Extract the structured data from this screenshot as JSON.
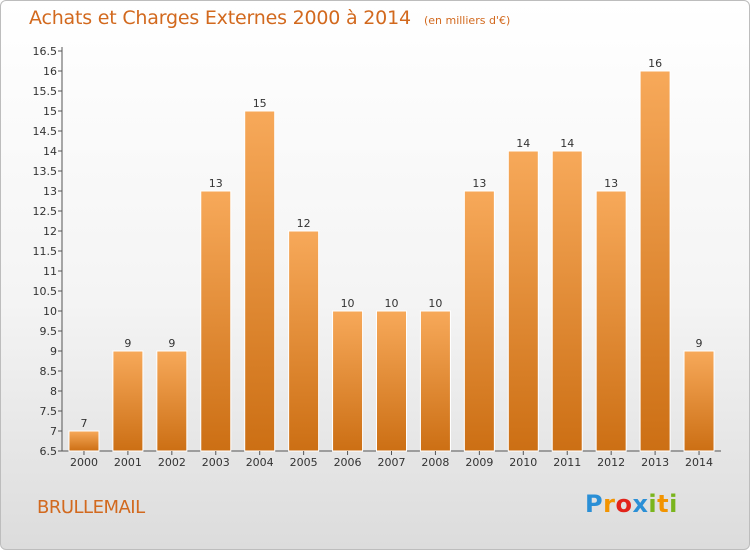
{
  "header": {
    "title": "Achats et Charges Externes 2000 à 2014",
    "unit": "(en milliers d'€)"
  },
  "commune": "BRULLEMAIL",
  "brand": {
    "letters": [
      "P",
      "r",
      "o",
      "x",
      "i",
      "t",
      "i"
    ],
    "colors": [
      "#2a8fd6",
      "#f29400",
      "#e2231a",
      "#2a8fd6",
      "#7ab51d",
      "#f29400",
      "#7ab51d"
    ]
  },
  "colors": {
    "bar_top": "#f7a95a",
    "bar_bottom": "#cc6f14",
    "bar_edge": "#ffffff",
    "text_accent": "#d2691e"
  },
  "chart_data": {
    "type": "bar",
    "categories": [
      "2000",
      "2001",
      "2002",
      "2003",
      "2004",
      "2005",
      "2006",
      "2007",
      "2008",
      "2009",
      "2010",
      "2011",
      "2012",
      "2013",
      "2014"
    ],
    "values": [
      7,
      9,
      9,
      13,
      15,
      12,
      10,
      10,
      10,
      13,
      14,
      14,
      13,
      16,
      9
    ],
    "ylim": [
      6.5,
      16.5
    ],
    "yticks": [
      "6.5",
      "7",
      "7.5",
      "8",
      "8.5",
      "9",
      "9.5",
      "10",
      "10.5",
      "11",
      "11.5",
      "12",
      "12.5",
      "13",
      "13.5",
      "14",
      "14.5",
      "15",
      "15.5",
      "16",
      "16.5"
    ],
    "grid": false,
    "data_labels": true
  }
}
